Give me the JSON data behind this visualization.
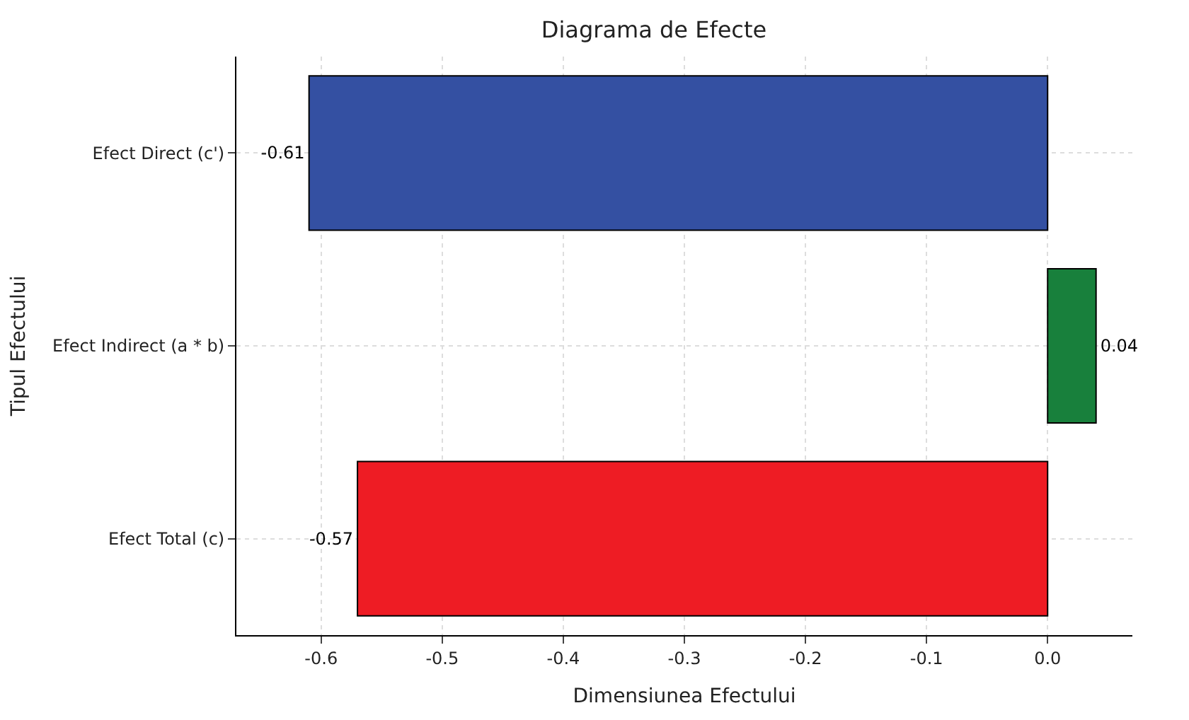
{
  "chart_data": {
    "type": "bar",
    "orientation": "horizontal",
    "title": "Diagrama de Efecte",
    "xlabel": "Dimensiunea Efectului",
    "ylabel": "Tipul Efectului",
    "categories": [
      "Efect Direct (c')",
      "Efect Indirect (a * b)",
      "Efect Total (c)"
    ],
    "values": [
      -0.61,
      0.04,
      -0.57
    ],
    "colors": [
      "#3450a2",
      "#18803c",
      "#ee1c24"
    ],
    "xlim": [
      -0.67,
      0.07
    ],
    "xticks": [
      -0.6,
      -0.5,
      -0.4,
      -0.3,
      -0.2,
      -0.1,
      {
        "value": 0,
        "label": "0.0"
      }
    ],
    "grid": true,
    "data_labels": true
  }
}
